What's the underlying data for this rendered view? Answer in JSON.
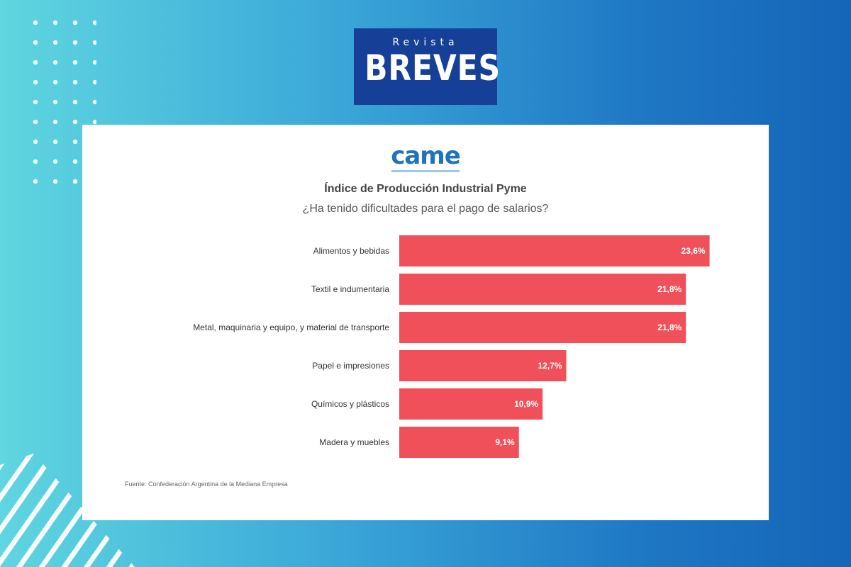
{
  "logo": {
    "revista": "Revista",
    "breves": "BREVES"
  },
  "card_logo": {
    "text": "came"
  },
  "chart_data": {
    "type": "bar",
    "orientation": "horizontal",
    "title": "Índice de Producción Industrial Pyme",
    "subtitle": "¿Ha tenido dificultades para el pago de salarios?",
    "categories": [
      "Alimentos y bebidas",
      "Textil e indumentaria",
      "Metal, maquinaria y equipo, y material de transporte",
      "Papel e impresiones",
      "Químicos y plásticos",
      "Madera y muebles"
    ],
    "values": [
      23.6,
      21.8,
      21.8,
      12.7,
      10.9,
      9.1
    ],
    "value_labels": [
      "23,6%",
      "21,8%",
      "21,8%",
      "12,7%",
      "10,9%",
      "9,1%"
    ],
    "xlim": [
      0,
      24
    ],
    "bar_color": "#f0505a",
    "grid": false,
    "legend": "none"
  },
  "source": "Fuente: Confederación Argentina de la Mediana Empresa"
}
